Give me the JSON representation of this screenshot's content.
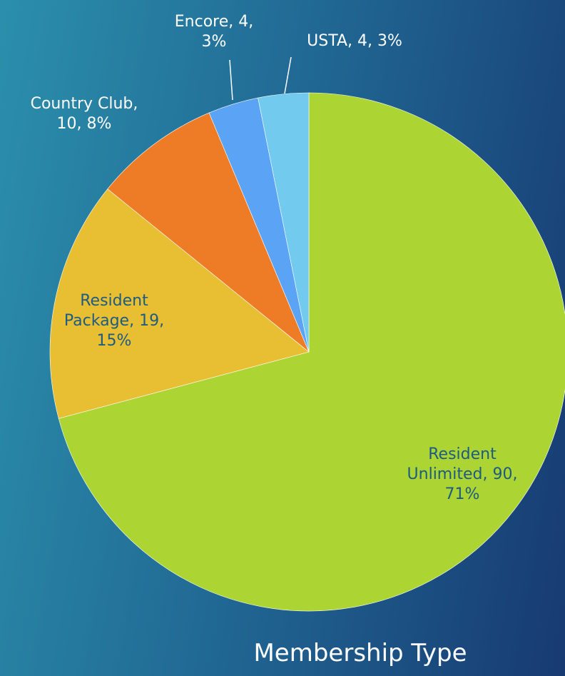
{
  "chart_data": {
    "type": "pie",
    "title": "Membership Type",
    "values": [
      90,
      19,
      10,
      4,
      4
    ],
    "value_labels": [
      "Resident Unlimited, 90, 71%",
      "Resident Package, 19, 15%",
      "Country Club, 10, 8%",
      "Encore, 4, 3%",
      "USTA, 4, 3%"
    ],
    "colors": [
      "#acd433",
      "#e8bf33",
      "#ee7b25",
      "#5ba3f5",
      "#72cbee"
    ],
    "start_angle": 90,
    "direction": "clockwise"
  }
}
